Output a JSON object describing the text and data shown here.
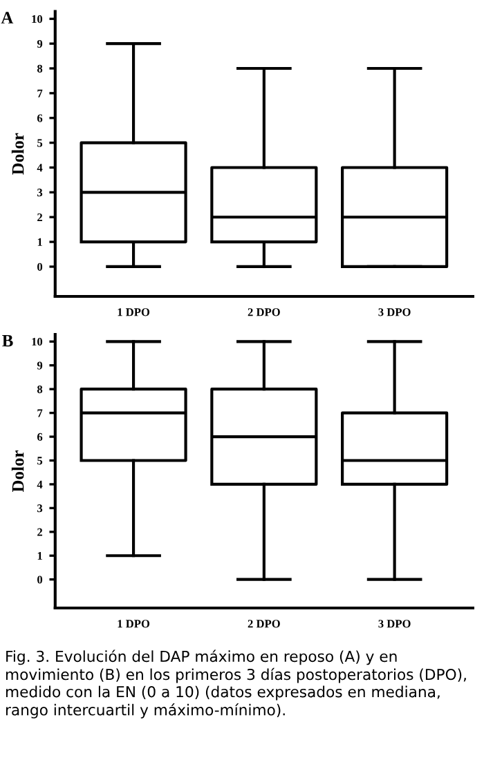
{
  "chart_data": [
    {
      "type": "box",
      "title": "A",
      "ylabel": "Dolor",
      "categories": [
        "1 DPO",
        "2 DPO",
        "3 DPO"
      ],
      "ylim": [
        -1.2,
        10.3
      ],
      "yticks": [
        0,
        1,
        2,
        3,
        4,
        5,
        6,
        7,
        8,
        9,
        10
      ],
      "grid": false,
      "boxes": [
        {
          "low": 0,
          "q1": 1,
          "median": 3,
          "q3": 5,
          "high": 9
        },
        {
          "low": 0,
          "q1": 1,
          "median": 2,
          "q3": 4,
          "high": 8
        },
        {
          "low": 0,
          "q1": 0,
          "median": 2,
          "q3": 4,
          "high": 8
        }
      ]
    },
    {
      "type": "box",
      "title": "B",
      "ylabel": "Dolor",
      "categories": [
        "1 DPO",
        "2 DPO",
        "3 DPO"
      ],
      "ylim": [
        -1.2,
        10.3
      ],
      "yticks": [
        0,
        1,
        2,
        3,
        4,
        5,
        6,
        7,
        8,
        9,
        10
      ],
      "grid": false,
      "boxes": [
        {
          "low": 1,
          "q1": 5,
          "median": 7,
          "q3": 8,
          "high": 10
        },
        {
          "low": 0,
          "q1": 4,
          "median": 6,
          "q3": 8,
          "high": 10
        },
        {
          "low": 0,
          "q1": 4,
          "median": 5,
          "q3": 7,
          "high": 10
        }
      ],
      "annotations": [
        "Fig. 3. Evolución del DAP máximo en reposo (A) y en movimiento (B) en los primeros 3 días postoperatorios (DPO), medido con la EN (0 a 10) (datos expresados en mediana, rango intercuartil y máximo-mínimo)."
      ]
    }
  ]
}
